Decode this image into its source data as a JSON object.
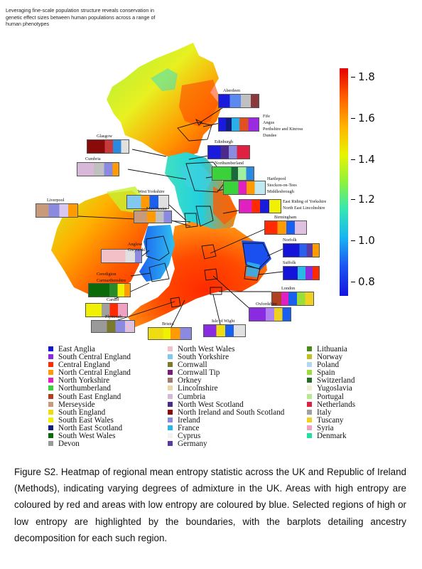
{
  "paper": {
    "header_text": "Leveraging fine-scale population structure reveals conservation in genetic effect sizes between human populations across a range of human phenotypes",
    "caption": "Figure S2.  Heatmap of regional mean entropy statistic across the UK and Republic of Ireland (Methods), indicating varying degrees of admixture in the UK. Areas with high entropy are coloured by red and areas with low entropy are coloured by blue. Selected regions of high or low entropy are highlighted by the boundaries, with the barplots detailing ancestry decomposition for each such region."
  },
  "colorbar": {
    "ticks": [
      "1.8",
      "1.6",
      "1.4",
      "1.2",
      "1.0",
      "0.8"
    ],
    "colors": [
      "#e50000",
      "#ff5a00",
      "#ffb000",
      "#e8f400",
      "#8ef23c",
      "#34e6b4",
      "#1ab6f0",
      "#1c54f2",
      "#1414e0"
    ]
  },
  "map_labels": [
    {
      "id": "aberdeen",
      "text": "Aberdeen"
    },
    {
      "id": "fife",
      "text": "Fife"
    },
    {
      "id": "angus",
      "text": "Angus"
    },
    {
      "id": "perth",
      "text": "Perthshire and Kinross"
    },
    {
      "id": "dundee",
      "text": "Dundee"
    },
    {
      "id": "glasgow",
      "text": "Glasgow"
    },
    {
      "id": "edinburgh",
      "text": "Edinburgh"
    },
    {
      "id": "cumbria",
      "text": "Cumbria"
    },
    {
      "id": "northumberland",
      "text": "Northumberland"
    },
    {
      "id": "hartlepool",
      "text": "Hartlepool"
    },
    {
      "id": "stockton",
      "text": "Stockon-on-Tees"
    },
    {
      "id": "middlesbrough",
      "text": "Middlesbrough"
    },
    {
      "id": "westyorks",
      "text": "West Yorkshire"
    },
    {
      "id": "eastriding",
      "text": "East Riding of Yorkshire"
    },
    {
      "id": "nelincs",
      "text": "North East Lincolnshire"
    },
    {
      "id": "liverpool",
      "text": "Liverpool"
    },
    {
      "id": "manchester",
      "text": "Manchester"
    },
    {
      "id": "birmingham",
      "text": "Birmingham"
    },
    {
      "id": "anglesey",
      "text": "Anglese"
    },
    {
      "id": "gwynedd",
      "text": "Gwynedd"
    },
    {
      "id": "norfolk",
      "text": "Norfolk"
    },
    {
      "id": "suffolk",
      "text": "Suffolk"
    },
    {
      "id": "ceredigion",
      "text": "Ceredigion"
    },
    {
      "id": "carmarthen",
      "text": "Carmarthenshire"
    },
    {
      "id": "london",
      "text": "London"
    },
    {
      "id": "cardiff",
      "text": "Cardiff"
    },
    {
      "id": "oxfordshire",
      "text": "Oxfordshire"
    },
    {
      "id": "plymouth",
      "text": "Plymouth"
    },
    {
      "id": "bristol",
      "text": "Bristol"
    },
    {
      "id": "isleofwight",
      "text": "Isle of Wight"
    }
  ],
  "legend": {
    "col1": [
      {
        "label": "East Anglia",
        "color": "#1414d8"
      },
      {
        "label": "South Central England",
        "color": "#8a2be2"
      },
      {
        "label": "Central England",
        "color": "#ff2a00"
      },
      {
        "label": "North Central England",
        "color": "#ff9a00"
      },
      {
        "label": "North Yorkshire",
        "color": "#e020c0"
      },
      {
        "label": "Northumberland",
        "color": "#3ad23a"
      },
      {
        "label": "South East England",
        "color": "#b04020"
      },
      {
        "label": "Merseyside",
        "color": "#c89a7a"
      },
      {
        "label": "South England",
        "color": "#eedd11"
      },
      {
        "label": "South East Wales",
        "color": "#f0f000"
      },
      {
        "label": "North East Scotland",
        "color": "#101c80"
      },
      {
        "label": "South West Wales",
        "color": "#0a6a0a"
      },
      {
        "label": "Devon",
        "color": "#9a9a9a"
      }
    ],
    "col2": [
      {
        "label": "North West Wales",
        "color": "#f4c0c8"
      },
      {
        "label": "South Yorkshire",
        "color": "#80c8f0"
      },
      {
        "label": "Cornwall",
        "color": "#7a7a2a"
      },
      {
        "label": "Cornwall Tip",
        "color": "#7a1a7a"
      },
      {
        "label": "Orkney",
        "color": "#a07a6a"
      },
      {
        "label": "Lincolnshire",
        "color": "#e8d8a8"
      },
      {
        "label": "Cumbria",
        "color": "#d8b8d8"
      },
      {
        "label": "North West Scotland",
        "color": "#4a2a8a"
      },
      {
        "label": "North Ireland and South Scotland",
        "color": "#8a0a0a"
      },
      {
        "label": "Ireland",
        "color": "#8a8ae0"
      },
      {
        "label": "France",
        "color": "#28b8e8"
      },
      {
        "label": "Cyprus",
        "color": "#f2f2f2"
      },
      {
        "label": "Germany",
        "color": "#5a3aa0"
      }
    ],
    "col3": [
      {
        "label": "Lithuania",
        "color": "#4a8a1a"
      },
      {
        "label": "Norway",
        "color": "#c0c020"
      },
      {
        "label": "Poland",
        "color": "#b0d8f0"
      },
      {
        "label": "Spain",
        "color": "#9ade3a"
      },
      {
        "label": "Switzerland",
        "color": "#2a6a2a"
      },
      {
        "label": "Yugoslavia",
        "color": "#f0f0d0"
      },
      {
        "label": "Portugal",
        "color": "#b8e890"
      },
      {
        "label": "Netherlands",
        "color": "#e02040"
      },
      {
        "label": "Italy",
        "color": "#a0a0a0"
      },
      {
        "label": "Tuscany",
        "color": "#f0d020"
      },
      {
        "label": "Syria",
        "color": "#f0a0c0"
      },
      {
        "label": "Denmark",
        "color": "#20e0a0"
      }
    ]
  }
}
